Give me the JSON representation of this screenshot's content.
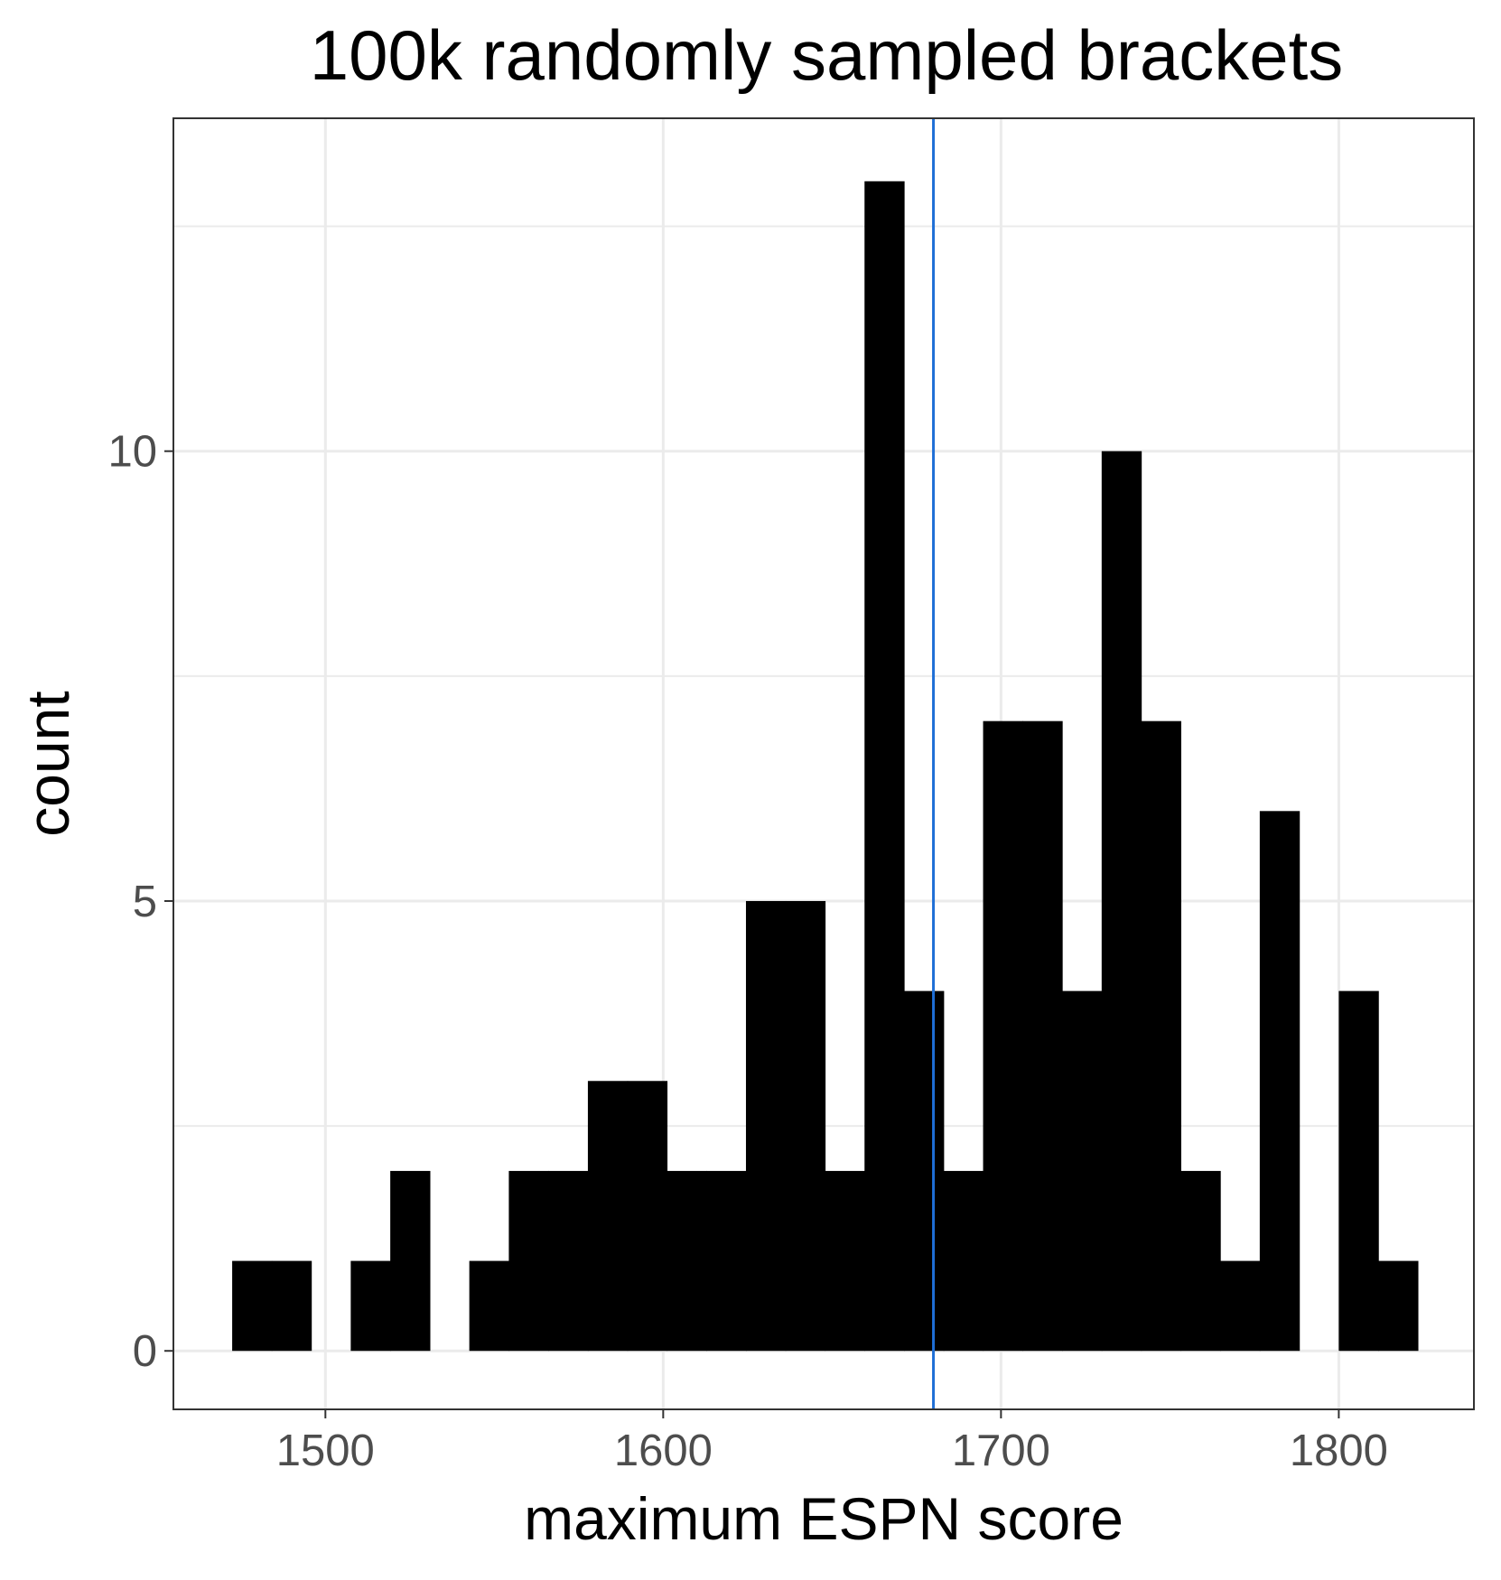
{
  "chart_data": {
    "type": "bar",
    "title": "100k randomly sampled brackets",
    "xlabel": "maximum ESPN score",
    "ylabel": "count",
    "xlim": [
      1455,
      1840
    ],
    "ylim": [
      -0.65,
      13.7
    ],
    "x_ticks": [
      1500,
      1600,
      1700,
      1800
    ],
    "x_tick_labels": [
      "1500",
      "1600",
      "1700",
      "1800"
    ],
    "y_ticks": [
      0,
      5,
      10
    ],
    "y_tick_labels": [
      "0",
      "5",
      "10"
    ],
    "y_minor_ticks": [
      2.5,
      7.5,
      12.5
    ],
    "grid": true,
    "bin_width": 11.7,
    "bins": [
      {
        "x0": 1472.4,
        "x1": 1484.1,
        "count": 1
      },
      {
        "x0": 1484.1,
        "x1": 1495.8,
        "count": 1
      },
      {
        "x0": 1495.8,
        "x1": 1507.5,
        "count": 0
      },
      {
        "x0": 1507.5,
        "x1": 1519.2,
        "count": 1
      },
      {
        "x0": 1519.2,
        "x1": 1530.9,
        "count": 2
      },
      {
        "x0": 1530.9,
        "x1": 1542.6,
        "count": 0
      },
      {
        "x0": 1542.6,
        "x1": 1554.3,
        "count": 1
      },
      {
        "x0": 1554.3,
        "x1": 1566.0,
        "count": 2
      },
      {
        "x0": 1566.0,
        "x1": 1577.7,
        "count": 2
      },
      {
        "x0": 1577.7,
        "x1": 1589.4,
        "count": 3
      },
      {
        "x0": 1589.4,
        "x1": 1601.1,
        "count": 3
      },
      {
        "x0": 1601.1,
        "x1": 1612.8,
        "count": 2
      },
      {
        "x0": 1612.8,
        "x1": 1624.5,
        "count": 2
      },
      {
        "x0": 1624.5,
        "x1": 1636.2,
        "count": 5
      },
      {
        "x0": 1636.2,
        "x1": 1647.9,
        "count": 5
      },
      {
        "x0": 1647.9,
        "x1": 1659.6,
        "count": 2
      },
      {
        "x0": 1659.6,
        "x1": 1671.3,
        "count": 13
      },
      {
        "x0": 1671.3,
        "x1": 1683.0,
        "count": 4
      },
      {
        "x0": 1683.0,
        "x1": 1694.7,
        "count": 2
      },
      {
        "x0": 1694.7,
        "x1": 1706.4,
        "count": 7
      },
      {
        "x0": 1706.4,
        "x1": 1718.1,
        "count": 7
      },
      {
        "x0": 1718.1,
        "x1": 1729.8,
        "count": 4
      },
      {
        "x0": 1729.8,
        "x1": 1741.5,
        "count": 10
      },
      {
        "x0": 1741.5,
        "x1": 1753.2,
        "count": 7
      },
      {
        "x0": 1753.2,
        "x1": 1764.9,
        "count": 2
      },
      {
        "x0": 1764.9,
        "x1": 1776.6,
        "count": 1
      },
      {
        "x0": 1776.6,
        "x1": 1788.3,
        "count": 6
      },
      {
        "x0": 1788.3,
        "x1": 1800.0,
        "count": 0
      },
      {
        "x0": 1800.0,
        "x1": 1811.7,
        "count": 4
      },
      {
        "x0": 1811.7,
        "x1": 1823.4,
        "count": 1
      }
    ],
    "reference_line": {
      "x": 1680,
      "color": "#1f6fd6"
    },
    "bar_color": "#000000"
  }
}
